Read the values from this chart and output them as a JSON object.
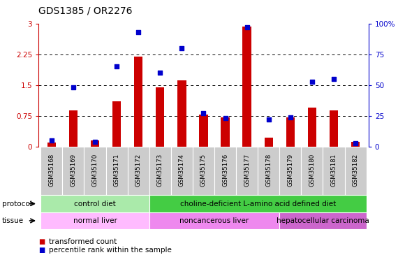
{
  "title": "GDS1385 / OR2276",
  "samples": [
    "GSM35168",
    "GSM35169",
    "GSM35170",
    "GSM35171",
    "GSM35172",
    "GSM35173",
    "GSM35174",
    "GSM35175",
    "GSM35176",
    "GSM35177",
    "GSM35178",
    "GSM35179",
    "GSM35180",
    "GSM35181",
    "GSM35182"
  ],
  "transformed_count": [
    0.1,
    0.88,
    0.15,
    1.1,
    2.2,
    1.45,
    1.62,
    0.78,
    0.72,
    2.93,
    0.22,
    0.72,
    0.95,
    0.88,
    0.12
  ],
  "percentile_rank": [
    5,
    48,
    4,
    65,
    93,
    60,
    80,
    27,
    23,
    97,
    22,
    24,
    53,
    55,
    3
  ],
  "bar_color": "#cc0000",
  "dot_color": "#0000cc",
  "ylim_left": [
    0,
    3
  ],
  "ylim_right": [
    0,
    100
  ],
  "yticks_left": [
    0,
    0.75,
    1.5,
    2.25,
    3
  ],
  "yticks_right": [
    0,
    25,
    50,
    75,
    100
  ],
  "ytick_labels_left": [
    "0",
    "0.75",
    "1.5",
    "2.25",
    "3"
  ],
  "ytick_labels_right": [
    "0",
    "25",
    "50",
    "75",
    "100%"
  ],
  "protocol_groups": [
    {
      "label": "control diet",
      "start": 0,
      "end": 4,
      "color": "#aaeaaa"
    },
    {
      "label": "choline-deficient L-amino acid defined diet",
      "start": 5,
      "end": 14,
      "color": "#44cc44"
    }
  ],
  "tissue_groups": [
    {
      "label": "normal liver",
      "start": 0,
      "end": 4,
      "color": "#ffbbff"
    },
    {
      "label": "noncancerous liver",
      "start": 5,
      "end": 10,
      "color": "#ee88ee"
    },
    {
      "label": "hepatocellular carcinoma",
      "start": 11,
      "end": 14,
      "color": "#cc66cc"
    }
  ],
  "left_axis_color": "#cc0000",
  "right_axis_color": "#0000cc",
  "plot_bg_color": "#ffffff",
  "tick_fontsize": 7.5,
  "bar_width": 0.4,
  "dot_size": 22
}
